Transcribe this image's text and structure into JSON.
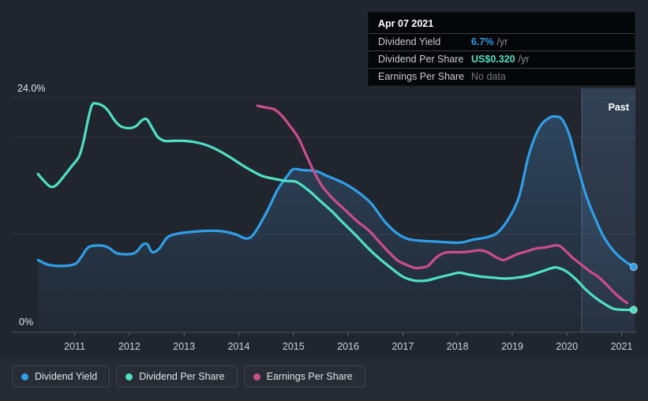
{
  "chart_data": {
    "type": "line",
    "title": "Dividend history chart",
    "x_axis": {
      "ticks": [
        2011,
        2012,
        2013,
        2014,
        2015,
        2016,
        2017,
        2018,
        2019,
        2020,
        2021
      ],
      "range": [
        2010.25,
        2021.28
      ]
    },
    "y_axis": {
      "unit": "%",
      "range": [
        0,
        24
      ],
      "gridline_values": [
        24,
        20,
        10,
        0
      ],
      "top_label": "24.0%",
      "bottom_label": "0%"
    },
    "past_region": {
      "label": "Past",
      "start": 2020.27
    },
    "legend_position": "bottom-left",
    "series": [
      {
        "name": "Dividend Yield",
        "color": "#2f9fe8",
        "area": true,
        "end_dot": true,
        "points": [
          [
            2010.33,
            7.4
          ],
          [
            2010.53,
            6.9
          ],
          [
            2010.79,
            6.8
          ],
          [
            2011.01,
            7.0
          ],
          [
            2011.12,
            7.7
          ],
          [
            2011.25,
            8.7
          ],
          [
            2011.44,
            8.9
          ],
          [
            2011.61,
            8.7
          ],
          [
            2011.77,
            8.1
          ],
          [
            2011.99,
            8.0
          ],
          [
            2012.12,
            8.2
          ],
          [
            2012.25,
            9.0
          ],
          [
            2012.33,
            9.0
          ],
          [
            2012.42,
            8.2
          ],
          [
            2012.55,
            8.6
          ],
          [
            2012.69,
            9.7
          ],
          [
            2012.88,
            10.1
          ],
          [
            2013.17,
            10.3
          ],
          [
            2013.5,
            10.4
          ],
          [
            2013.75,
            10.3
          ],
          [
            2013.96,
            10.0
          ],
          [
            2014.14,
            9.6
          ],
          [
            2014.28,
            10.1
          ],
          [
            2014.51,
            12.3
          ],
          [
            2014.71,
            14.6
          ],
          [
            2014.9,
            16.1
          ],
          [
            2015.0,
            16.7
          ],
          [
            2015.19,
            16.6
          ],
          [
            2015.41,
            16.5
          ],
          [
            2015.62,
            16.0
          ],
          [
            2015.91,
            15.3
          ],
          [
            2016.17,
            14.4
          ],
          [
            2016.42,
            13.2
          ],
          [
            2016.66,
            11.4
          ],
          [
            2016.88,
            10.2
          ],
          [
            2017.07,
            9.6
          ],
          [
            2017.28,
            9.4
          ],
          [
            2017.57,
            9.3
          ],
          [
            2017.86,
            9.2
          ],
          [
            2018.08,
            9.2
          ],
          [
            2018.29,
            9.5
          ],
          [
            2018.51,
            9.7
          ],
          [
            2018.73,
            10.2
          ],
          [
            2018.94,
            11.7
          ],
          [
            2019.13,
            14.0
          ],
          [
            2019.3,
            18.1
          ],
          [
            2019.49,
            20.9
          ],
          [
            2019.66,
            21.9
          ],
          [
            2019.78,
            22.1
          ],
          [
            2019.91,
            21.8
          ],
          [
            2020.05,
            20.1
          ],
          [
            2020.21,
            16.7
          ],
          [
            2020.34,
            14.2
          ],
          [
            2020.49,
            12.0
          ],
          [
            2020.67,
            9.8
          ],
          [
            2020.86,
            8.3
          ],
          [
            2021.03,
            7.4
          ],
          [
            2021.22,
            6.7
          ]
        ]
      },
      {
        "name": "Dividend Per Share",
        "color": "#4fe0c4",
        "area": false,
        "end_dot": true,
        "points": [
          [
            2010.33,
            16.2
          ],
          [
            2010.44,
            15.5
          ],
          [
            2010.56,
            14.9
          ],
          [
            2010.67,
            15.1
          ],
          [
            2010.82,
            16.1
          ],
          [
            2010.96,
            17.1
          ],
          [
            2011.08,
            18.0
          ],
          [
            2011.16,
            19.5
          ],
          [
            2011.25,
            21.9
          ],
          [
            2011.32,
            23.3
          ],
          [
            2011.41,
            23.4
          ],
          [
            2011.51,
            23.2
          ],
          [
            2011.61,
            22.7
          ],
          [
            2011.73,
            21.7
          ],
          [
            2011.84,
            21.1
          ],
          [
            2011.99,
            20.9
          ],
          [
            2012.12,
            21.1
          ],
          [
            2012.23,
            21.7
          ],
          [
            2012.32,
            21.8
          ],
          [
            2012.42,
            20.9
          ],
          [
            2012.52,
            20.0
          ],
          [
            2012.64,
            19.6
          ],
          [
            2012.81,
            19.6
          ],
          [
            2012.98,
            19.6
          ],
          [
            2013.17,
            19.5
          ],
          [
            2013.39,
            19.2
          ],
          [
            2013.6,
            18.7
          ],
          [
            2013.82,
            18.0
          ],
          [
            2014.04,
            17.2
          ],
          [
            2014.22,
            16.6
          ],
          [
            2014.43,
            16.0
          ],
          [
            2014.66,
            15.7
          ],
          [
            2014.86,
            15.5
          ],
          [
            2015.05,
            15.4
          ],
          [
            2015.26,
            14.6
          ],
          [
            2015.48,
            13.5
          ],
          [
            2015.7,
            12.4
          ],
          [
            2015.91,
            11.2
          ],
          [
            2016.13,
            10.0
          ],
          [
            2016.35,
            8.7
          ],
          [
            2016.56,
            7.6
          ],
          [
            2016.78,
            6.6
          ],
          [
            2017.0,
            5.7
          ],
          [
            2017.21,
            5.3
          ],
          [
            2017.43,
            5.3
          ],
          [
            2017.64,
            5.6
          ],
          [
            2017.86,
            5.9
          ],
          [
            2018.03,
            6.1
          ],
          [
            2018.22,
            5.9
          ],
          [
            2018.44,
            5.7
          ],
          [
            2018.65,
            5.6
          ],
          [
            2018.87,
            5.5
          ],
          [
            2019.09,
            5.6
          ],
          [
            2019.3,
            5.8
          ],
          [
            2019.52,
            6.2
          ],
          [
            2019.74,
            6.6
          ],
          [
            2019.84,
            6.6
          ],
          [
            2020.0,
            6.2
          ],
          [
            2020.17,
            5.4
          ],
          [
            2020.34,
            4.4
          ],
          [
            2020.53,
            3.5
          ],
          [
            2020.72,
            2.8
          ],
          [
            2020.86,
            2.4
          ],
          [
            2021.03,
            2.3
          ],
          [
            2021.22,
            2.3
          ]
        ]
      },
      {
        "name": "Earnings Per Share",
        "color": "#cb4d8c",
        "area": false,
        "end_dot": false,
        "points": [
          [
            2014.34,
            23.2
          ],
          [
            2014.51,
            23.0
          ],
          [
            2014.66,
            22.8
          ],
          [
            2014.8,
            22.1
          ],
          [
            2014.94,
            21.1
          ],
          [
            2015.09,
            19.9
          ],
          [
            2015.23,
            18.2
          ],
          [
            2015.38,
            16.4
          ],
          [
            2015.52,
            15.0
          ],
          [
            2015.67,
            14.0
          ],
          [
            2015.81,
            13.2
          ],
          [
            2015.95,
            12.5
          ],
          [
            2016.1,
            11.7
          ],
          [
            2016.2,
            11.2
          ],
          [
            2016.32,
            10.7
          ],
          [
            2016.42,
            10.2
          ],
          [
            2016.53,
            9.5
          ],
          [
            2016.66,
            8.7
          ],
          [
            2016.78,
            8.0
          ],
          [
            2016.92,
            7.3
          ],
          [
            2017.07,
            6.9
          ],
          [
            2017.21,
            6.6
          ],
          [
            2017.31,
            6.6
          ],
          [
            2017.46,
            6.8
          ],
          [
            2017.6,
            7.6
          ],
          [
            2017.74,
            8.1
          ],
          [
            2017.89,
            8.2
          ],
          [
            2018.08,
            8.2
          ],
          [
            2018.26,
            8.3
          ],
          [
            2018.41,
            8.4
          ],
          [
            2018.55,
            8.2
          ],
          [
            2018.7,
            7.7
          ],
          [
            2018.83,
            7.4
          ],
          [
            2018.94,
            7.6
          ],
          [
            2019.09,
            8.0
          ],
          [
            2019.27,
            8.3
          ],
          [
            2019.45,
            8.6
          ],
          [
            2019.62,
            8.7
          ],
          [
            2019.78,
            8.9
          ],
          [
            2019.88,
            8.8
          ],
          [
            2020.0,
            8.2
          ],
          [
            2020.11,
            7.6
          ],
          [
            2020.27,
            6.9
          ],
          [
            2020.43,
            6.2
          ],
          [
            2020.57,
            5.7
          ],
          [
            2020.72,
            4.9
          ],
          [
            2020.86,
            4.1
          ],
          [
            2021.0,
            3.4
          ],
          [
            2021.1,
            3.0
          ]
        ]
      }
    ]
  },
  "tooltip": {
    "date": "Apr 07 2021",
    "dividend_yield": {
      "label": "Dividend Yield",
      "value": "6.7%",
      "unit": "/yr"
    },
    "dividend_per_share": {
      "label": "Dividend Per Share",
      "value": "US$0.320",
      "unit": "/yr"
    },
    "earnings_per_share": {
      "label": "Earnings Per Share",
      "value": "No data",
      "unit": ""
    }
  },
  "legend": {
    "items": [
      {
        "label": "Dividend Yield"
      },
      {
        "label": "Dividend Per Share"
      },
      {
        "label": "Earnings Per Share"
      }
    ]
  },
  "colors": {
    "page_bg": "#262b33",
    "plot_bg": "#20252e",
    "gridline": "#2d333d",
    "axis_line": "#4a5260",
    "tick_text": "#ced2d6",
    "past_label_text": "#ffffff"
  }
}
